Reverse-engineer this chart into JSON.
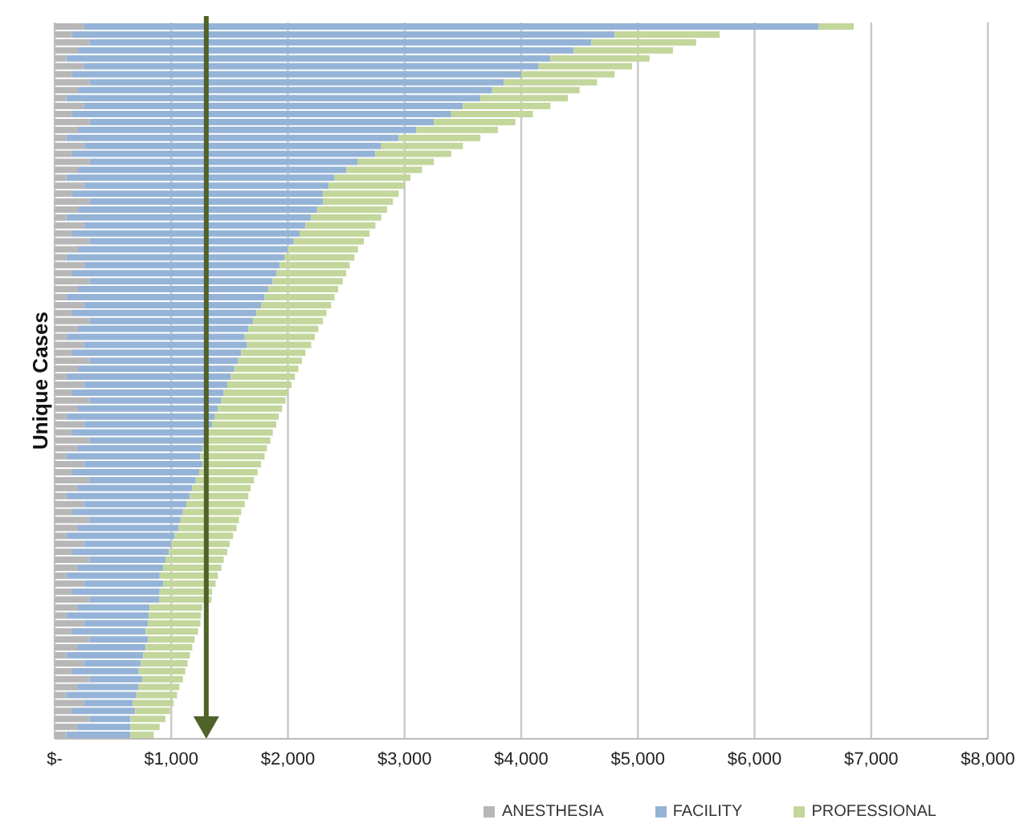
{
  "chart_data": {
    "type": "bar",
    "orientation": "horizontal",
    "stacked": true,
    "ylabel": "Unique Cases",
    "categories": [
      null,
      null,
      null,
      null,
      null,
      null,
      null,
      null,
      null,
      null,
      null,
      null,
      null,
      null,
      null,
      null,
      null,
      null,
      null,
      null,
      null,
      null,
      null,
      null,
      null,
      null,
      null,
      null,
      null,
      null,
      null,
      null,
      null,
      null,
      null,
      null,
      null,
      null,
      null,
      null,
      null,
      null,
      null,
      null,
      null,
      null,
      null,
      null,
      null,
      null,
      null,
      null,
      null,
      null,
      null,
      null,
      null,
      null,
      null,
      null,
      null,
      null,
      null,
      null,
      null,
      null,
      null,
      null,
      null,
      null,
      null,
      null,
      null,
      null,
      null,
      null,
      null,
      null,
      null,
      null,
      null,
      null,
      null,
      null,
      null,
      null,
      null,
      null,
      null,
      null
    ],
    "series": [
      {
        "name": "ANESTHESIA",
        "color": "#b7b7b7",
        "values": [
          250,
          150,
          300,
          200,
          100,
          250,
          150,
          300,
          200,
          100,
          250,
          150,
          300,
          200,
          100,
          250,
          150,
          300,
          200,
          100,
          250,
          150,
          300,
          200,
          100,
          250,
          150,
          300,
          200,
          100,
          250,
          150,
          300,
          200,
          100,
          250,
          150,
          300,
          200,
          100,
          250,
          150,
          300,
          200,
          100,
          250,
          150,
          300,
          200,
          100,
          250,
          150,
          300,
          200,
          100,
          250,
          150,
          300,
          200,
          100,
          250,
          150,
          300,
          200,
          100,
          250,
          150,
          300,
          200,
          100,
          250,
          150,
          300,
          200,
          100,
          250,
          150,
          300,
          200,
          100,
          250,
          150,
          300,
          200,
          100,
          250,
          150,
          300,
          200,
          100
        ]
      },
      {
        "name": "FACILITY",
        "color": "#95b3d7",
        "values": [
          6300,
          4650,
          4300,
          4250,
          4150,
          3900,
          3850,
          3550,
          3550,
          3550,
          3250,
          3250,
          2950,
          2900,
          2850,
          2550,
          2600,
          2300,
          2300,
          2300,
          2100,
          2150,
          2000,
          2050,
          2100,
          1900,
          1950,
          1750,
          1800,
          1870,
          1680,
          1750,
          1570,
          1630,
          1700,
          1520,
          1580,
          1400,
          1460,
          1530,
          1400,
          1450,
          1270,
          1340,
          1410,
          1230,
          1300,
          1130,
          1200,
          1270,
          1100,
          1170,
          1000,
          1070,
          1150,
          1020,
          1090,
          910,
          980,
          1060,
          880,
          950,
          780,
          860,
          930,
          750,
          830,
          650,
          730,
          800,
          680,
          750,
          595,
          615,
          705,
          550,
          630,
          500,
          580,
          660,
          490,
          570,
          450,
          520,
          600,
          420,
          540,
          350,
          450,
          550
        ]
      },
      {
        "name": "PROFESSIONAL",
        "color": "#c3d69b",
        "values": [
          300,
          900,
          900,
          850,
          850,
          800,
          800,
          800,
          750,
          750,
          750,
          700,
          700,
          700,
          700,
          700,
          650,
          650,
          650,
          650,
          650,
          650,
          600,
          600,
          600,
          600,
          600,
          600,
          600,
          600,
          600,
          600,
          600,
          600,
          600,
          600,
          600,
          600,
          600,
          600,
          550,
          550,
          550,
          550,
          550,
          550,
          550,
          550,
          550,
          550,
          550,
          550,
          550,
          550,
          550,
          500,
          500,
          500,
          500,
          500,
          500,
          500,
          500,
          500,
          500,
          500,
          500,
          500,
          500,
          500,
          450,
          450,
          450,
          450,
          450,
          450,
          450,
          400,
          400,
          400,
          400,
          400,
          350,
          350,
          350,
          350,
          300,
          300,
          250,
          200
        ]
      }
    ],
    "xlim": [
      0,
      8000
    ],
    "xticks": [
      {
        "value": 0,
        "label": "$-"
      },
      {
        "value": 1000,
        "label": "$1,000"
      },
      {
        "value": 2000,
        "label": "$2,000"
      },
      {
        "value": 3000,
        "label": "$3,000"
      },
      {
        "value": 4000,
        "label": "$4,000"
      },
      {
        "value": 5000,
        "label": "$5,000"
      },
      {
        "value": 6000,
        "label": "$6,000"
      },
      {
        "value": 7000,
        "label": "$7,000"
      },
      {
        "value": 8000,
        "label": "$8,000"
      }
    ],
    "tick_labels": "x",
    "grid": "x",
    "legend": "bottom right",
    "ref_lines": [
      {
        "axis": "x",
        "value": 1300,
        "color": "#4f6228"
      }
    ]
  }
}
